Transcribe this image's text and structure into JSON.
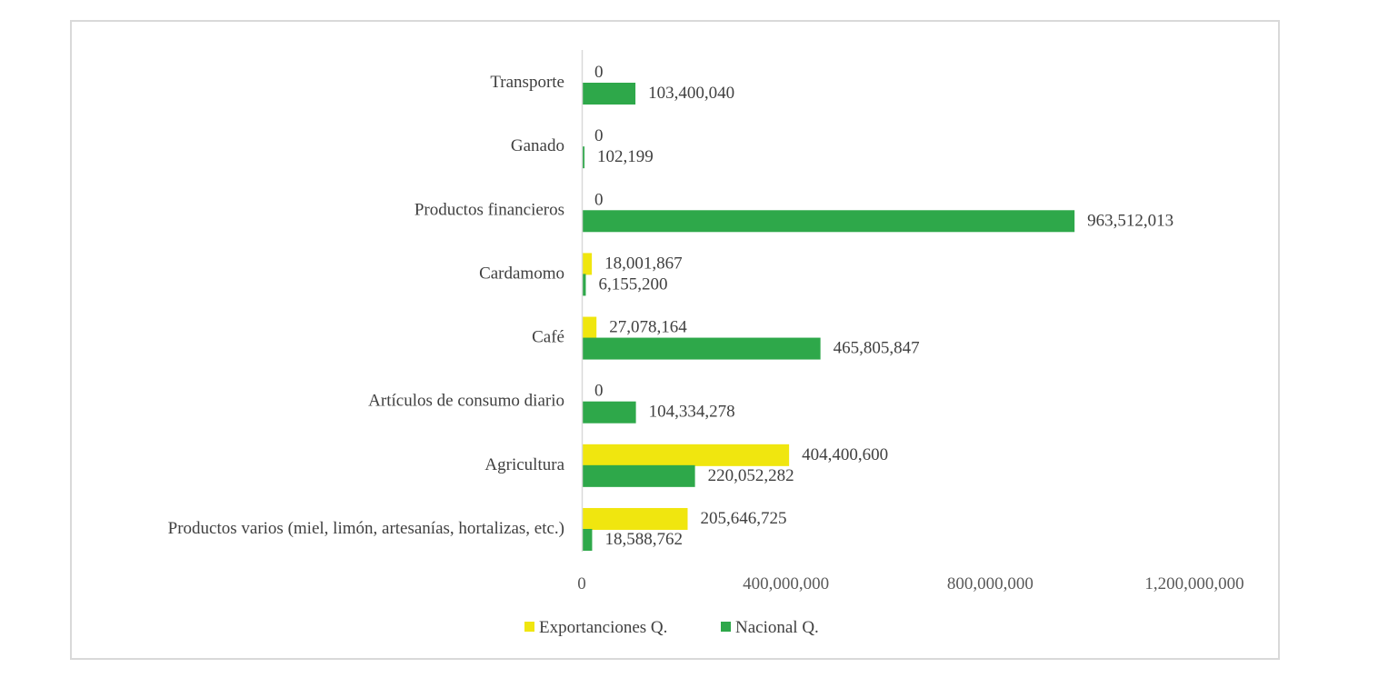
{
  "chart_data": {
    "type": "bar",
    "orientation": "horizontal",
    "title": "",
    "xlabel": "",
    "ylabel": "",
    "categories": [
      "Productos varios (miel, limón, artesanías, hortalizas, etc.)",
      "Agricultura",
      "Artículos de consumo diario",
      "Café",
      "Cardamomo",
      "Productos financieros",
      "Ganado",
      "Transporte"
    ],
    "series": [
      {
        "name": "Exportanciones Q.",
        "color": "#f0e60f",
        "values": [
          205646725,
          404400600,
          0,
          27078164,
          18001867,
          0,
          0,
          0
        ],
        "labels": [
          "205,646,725",
          "404,400,600",
          "0",
          "27,078,164",
          "18,001,867",
          "0",
          "0",
          "0"
        ]
      },
      {
        "name": "Nacional Q.",
        "color": "#2ea84a",
        "values": [
          18588762,
          220052282,
          104334278,
          465805847,
          6155200,
          963512013,
          102199,
          103400040
        ],
        "labels": [
          "18,588,762",
          "220,052,282",
          "104,334,278",
          "465,805,847",
          "6,155,200",
          "963,512,013",
          "102,199",
          "103,400,040"
        ]
      }
    ],
    "xlim": [
      0,
      1200000000
    ],
    "xticks": [
      0,
      400000000,
      800000000,
      1200000000
    ],
    "xtick_labels": [
      "0",
      "400,000,000",
      "800,000,000",
      "1,200,000,000"
    ],
    "grid": false,
    "legend_position": "bottom"
  }
}
